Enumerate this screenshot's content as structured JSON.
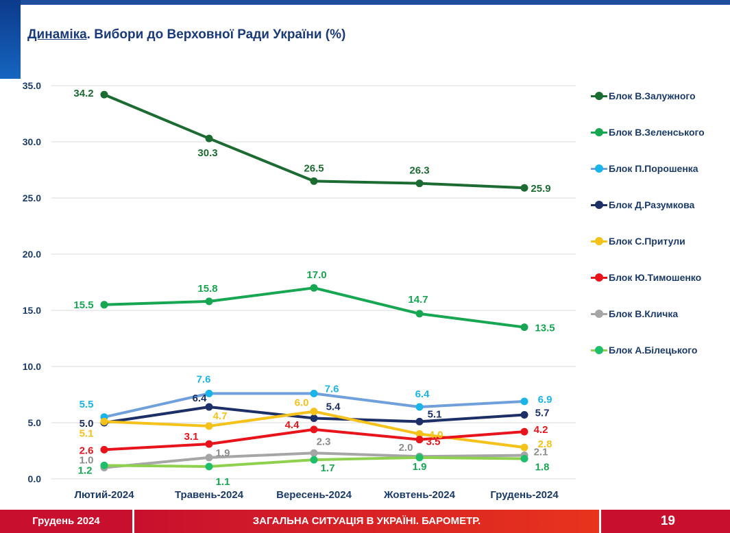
{
  "title": {
    "prefix": "Динаміка",
    "rest": ". Вибори до Верховної Ради України (%)"
  },
  "chart_data": {
    "type": "line",
    "title": "Динаміка. Вибори до Верховної Ради України (%)",
    "categories": [
      "Лютий-2024",
      "Травень-2024",
      "Вересень-2024",
      "Жовтень-2024",
      "Грудень-2024"
    ],
    "ylim": [
      0,
      35
    ],
    "yticks": [
      "0.0",
      "5.0",
      "10.0",
      "15.0",
      "20.0",
      "25.0",
      "30.0",
      "35.0"
    ],
    "grid": true,
    "legend_position": "right",
    "series": [
      {
        "name": "Блок В.Залужного",
        "color": "#1b6b32",
        "marker": "#1b6b32",
        "values": [
          34.2,
          30.3,
          26.5,
          26.3,
          25.9
        ],
        "labels": [
          "34.2",
          "30.3",
          "26.5",
          "26.3",
          "25.9"
        ]
      },
      {
        "name": "Блок В.Зеленського",
        "color": "#17a651",
        "marker": "#17a651",
        "values": [
          15.5,
          15.8,
          17.0,
          14.7,
          13.5
        ],
        "labels": [
          "15.5",
          "15.8",
          "17.0",
          "14.7",
          "13.5"
        ]
      },
      {
        "name": "Блок П.Порошенка",
        "color": "#6fa0dc",
        "marker": "#19b4e8",
        "labelColor": "#19b4e8",
        "values": [
          5.5,
          7.6,
          7.6,
          6.4,
          6.9
        ],
        "labels": [
          "5.5",
          "7.6",
          "7.6",
          "6.4",
          "6.9"
        ]
      },
      {
        "name": "Блок Д.Разумкова",
        "color": "#1c2f66",
        "marker": "#1c2f66",
        "values": [
          5.0,
          6.4,
          5.4,
          5.1,
          5.7
        ],
        "labels": [
          "5.0",
          "6.4",
          "5.4",
          "5.1",
          "5.7"
        ]
      },
      {
        "name": "Блок С.Притули",
        "color": "#f5c21b",
        "marker": "#f5c21b",
        "values": [
          5.1,
          4.7,
          6.0,
          4.0,
          2.8
        ],
        "labels": [
          "5.1",
          "4.7",
          "6.0",
          "4.0",
          "2.8"
        ]
      },
      {
        "name": "Блок Ю.Тимошенко",
        "color": "#e8141c",
        "marker": "#e8141c",
        "values": [
          2.6,
          3.1,
          4.4,
          3.5,
          4.2
        ],
        "labels": [
          "2.6",
          "3.1",
          "4.4",
          "3.5",
          "4.2"
        ]
      },
      {
        "name": "Блок В.Кличка",
        "color": "#a6a6a6",
        "marker": "#a6a6a6",
        "labelColor": "#8c8c8c",
        "values": [
          1.0,
          1.9,
          2.3,
          2.0,
          2.1
        ],
        "labels": [
          "1.0",
          "1.9",
          "2.3",
          "2.0",
          "2.1"
        ]
      },
      {
        "name": "Блок А.Білецького",
        "color": "#8fd14f",
        "marker": "#1fbe6a",
        "labelColor": "#17a651",
        "values": [
          1.2,
          1.1,
          1.7,
          1.9,
          1.8
        ],
        "labels": [
          "1.2",
          "1.1",
          "1.7",
          "1.9",
          "1.8"
        ]
      }
    ]
  },
  "footer": {
    "date": "Грудень 2024",
    "subtitle": "ЗАГАЛЬНА СИТУАЦІЯ В УКРАЇНІ. БАРОМЕТР.",
    "page": "19"
  }
}
